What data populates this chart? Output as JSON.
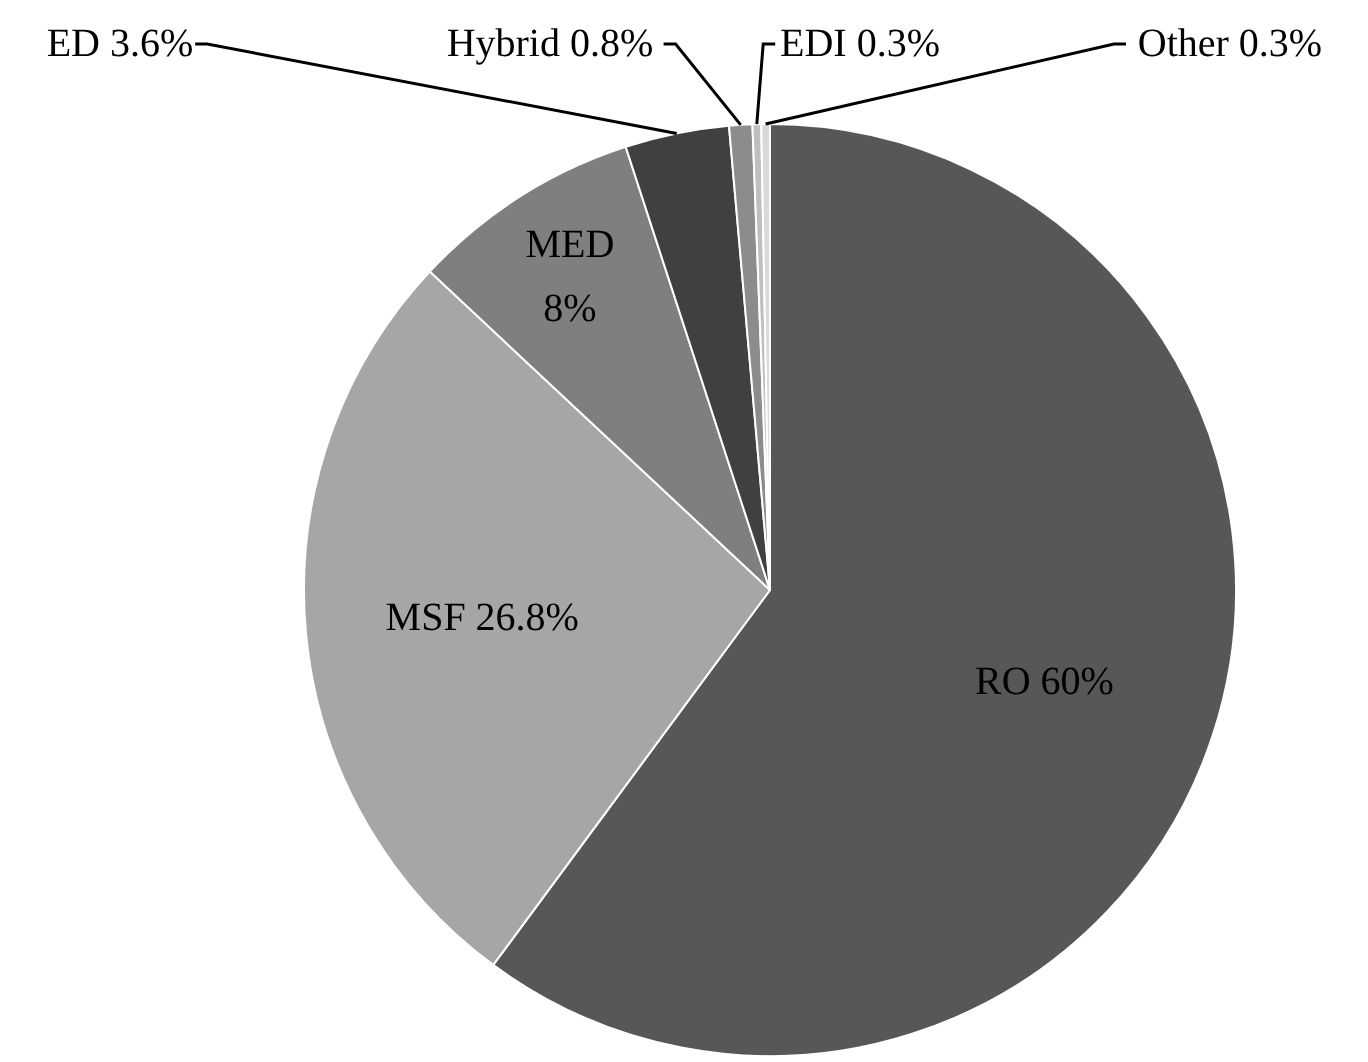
{
  "chart_data": {
    "type": "pie",
    "categories": [
      "RO",
      "MSF",
      "MED",
      "ED",
      "Hybrid",
      "EDI",
      "Other"
    ],
    "values": [
      60,
      26.8,
      8,
      3.6,
      0.8,
      0.3,
      0.3
    ],
    "colors": [
      "#575757",
      "#a6a6a6",
      "#7f7f7f",
      "#404040",
      "#8c8c8c",
      "#bfbfbf",
      "#d9d9d9"
    ],
    "value_labels": [
      "60%",
      "26.8%",
      "8%",
      "3.6%",
      "0.8%",
      "0.3%",
      "0.3%"
    ]
  }
}
